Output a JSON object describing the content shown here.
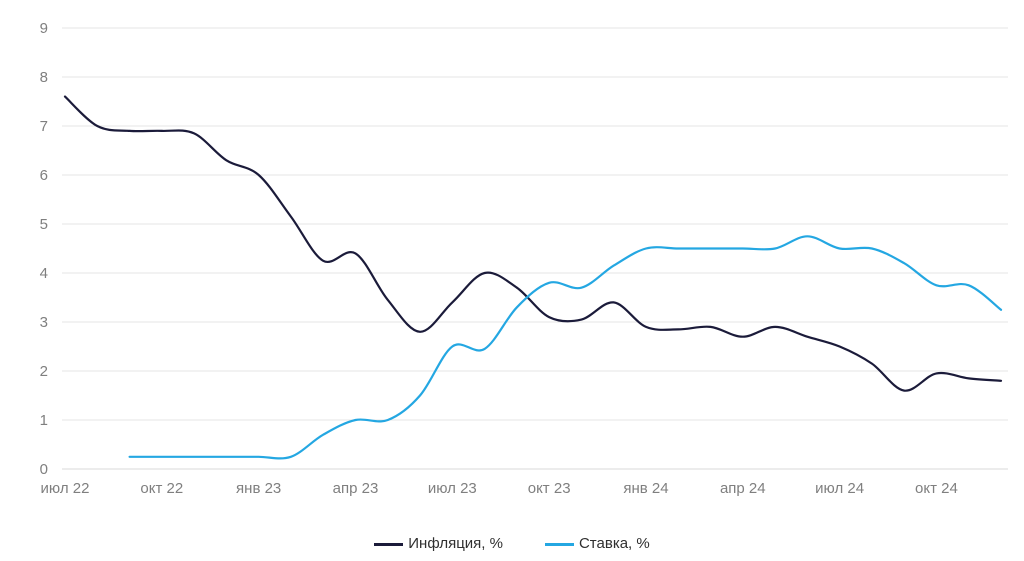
{
  "chart_data": {
    "type": "line",
    "title": "",
    "background": "#ffffff",
    "grid": "horizontal",
    "grid_color": "#e4e4e4",
    "baseline_color": "#d8d8d8",
    "axis_label_color": "#7f7f7f",
    "legend_position": "bottom-center",
    "ylim": [
      0,
      9
    ],
    "y_ticks": [
      "0",
      "1",
      "2",
      "3",
      "4",
      "5",
      "6",
      "7",
      "8",
      "9"
    ],
    "n_points": 30,
    "x_tick_labels": [
      "июл 22",
      "окт 22",
      "янв 23",
      "апр 23",
      "июл 23",
      "окт 23",
      "янв 24",
      "апр 24",
      "июл 24",
      "окт 24"
    ],
    "x_tick_month_index": [
      0,
      3,
      6,
      9,
      12,
      15,
      18,
      21,
      24,
      27
    ],
    "series": [
      {
        "name": "Инфляция, %",
        "color": "#1b1b3a",
        "values": [
          7.6,
          7.0,
          6.9,
          6.9,
          6.85,
          6.3,
          6.0,
          5.15,
          4.25,
          4.4,
          3.45,
          2.8,
          3.4,
          4.0,
          3.7,
          3.1,
          3.05,
          3.4,
          2.9,
          2.85,
          2.9,
          2.7,
          2.9,
          2.7,
          2.5,
          2.15,
          1.6,
          1.95,
          1.85,
          1.8
        ]
      },
      {
        "name": "Ставка, %",
        "color": "#24a7e2",
        "values": [
          null,
          null,
          0.25,
          0.25,
          0.25,
          0.25,
          0.25,
          0.25,
          0.7,
          1.0,
          1.0,
          1.5,
          2.5,
          2.45,
          3.3,
          3.8,
          3.7,
          4.15,
          4.5,
          4.5,
          4.5,
          4.5,
          4.5,
          4.75,
          4.5,
          4.5,
          4.2,
          3.75,
          3.75,
          3.25
        ]
      }
    ]
  }
}
